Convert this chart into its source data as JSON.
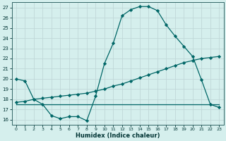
{
  "title": "",
  "xlabel": "Humidex (Indice chaleur)",
  "ylabel": "",
  "bg_color": "#d5efed",
  "line_color": "#006666",
  "grid_color": "#c0d8d8",
  "xlim": [
    -0.5,
    23.5
  ],
  "ylim": [
    15.5,
    27.5
  ],
  "yticks": [
    16,
    17,
    18,
    19,
    20,
    21,
    22,
    23,
    24,
    25,
    26,
    27
  ],
  "xticks": [
    0,
    1,
    2,
    3,
    4,
    5,
    6,
    7,
    8,
    9,
    10,
    11,
    12,
    13,
    14,
    15,
    16,
    17,
    18,
    19,
    20,
    21,
    22,
    23
  ],
  "curve1_x": [
    0,
    1,
    2,
    3,
    4,
    5,
    6,
    7,
    8,
    9,
    10,
    11,
    12,
    13,
    14,
    15,
    16,
    17,
    18,
    19,
    20,
    21,
    22,
    23
  ],
  "curve1_y": [
    20.0,
    19.8,
    18.0,
    17.5,
    16.4,
    16.1,
    16.3,
    16.3,
    15.9,
    18.3,
    21.5,
    23.5,
    26.2,
    26.8,
    27.1,
    27.1,
    26.7,
    25.3,
    24.2,
    23.2,
    22.2,
    19.9,
    17.5,
    17.2
  ],
  "curve2_x": [
    0,
    9,
    15,
    20,
    23
  ],
  "curve2_y": [
    17.5,
    17.5,
    17.5,
    17.5,
    17.5
  ],
  "curve3_x": [
    0,
    1,
    2,
    3,
    4,
    5,
    6,
    7,
    8,
    9,
    10,
    11,
    12,
    13,
    14,
    15,
    16,
    17,
    18,
    19,
    20,
    21,
    22,
    23
  ],
  "curve3_y": [
    17.7,
    17.8,
    18.0,
    18.1,
    18.2,
    18.3,
    18.4,
    18.5,
    18.6,
    18.8,
    19.0,
    19.3,
    19.5,
    19.8,
    20.1,
    20.4,
    20.7,
    21.0,
    21.3,
    21.6,
    21.8,
    22.0,
    22.1,
    22.2
  ]
}
